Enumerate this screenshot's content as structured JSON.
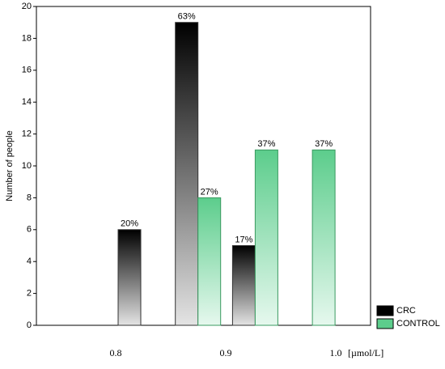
{
  "chart_data": {
    "type": "bar",
    "y_label": "Number of people",
    "x_label": "[µmol/L]",
    "categories": [
      null,
      null,
      null,
      null
    ],
    "x_tick_labels": [
      "0.8",
      "0.9",
      "1.0"
    ],
    "series": [
      {
        "name": "CRC",
        "color": "#000000",
        "values": [
          6,
          19,
          5,
          null
        ],
        "value_labels": [
          "20%",
          "63%",
          "17%",
          null
        ]
      },
      {
        "name": "CONTROL",
        "color": "#5ccd8c",
        "values": [
          null,
          8,
          11,
          11
        ],
        "value_labels": [
          null,
          "27%",
          "37%",
          "37%"
        ]
      }
    ],
    "ylim": [
      0,
      20
    ],
    "yticks": [
      0,
      2,
      4,
      6,
      8,
      10,
      12,
      14,
      16,
      18,
      20
    ],
    "legend": "bottom-right"
  }
}
